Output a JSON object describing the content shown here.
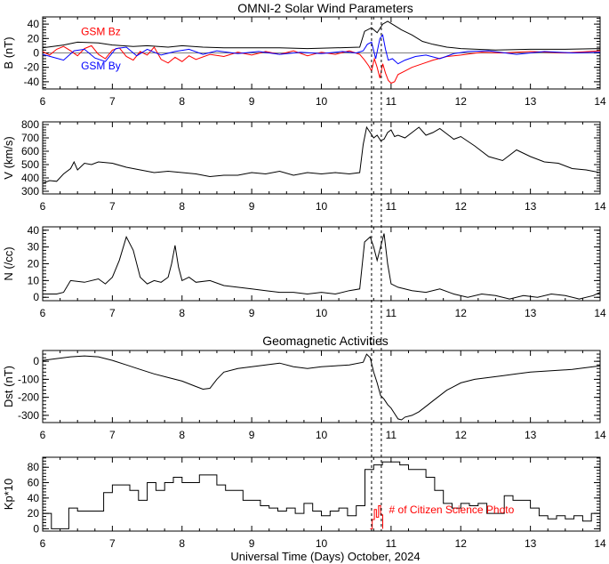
{
  "titles": {
    "solar_wind": "OMNI-2 Solar Wind Parameters",
    "geomagnetic": "Geomagnetic Activities"
  },
  "x_axis": {
    "label": "Universal Time (Days) October, 2024",
    "ticks": [
      6,
      7,
      8,
      9,
      10,
      11,
      12,
      13,
      14
    ],
    "range": [
      6,
      14
    ]
  },
  "event_markers": [
    10.72,
    10.86
  ],
  "colors": {
    "black": "#000000",
    "bz": "#ff0000",
    "by": "#0000ff",
    "photo": "#ff0000"
  },
  "chart_data": [
    {
      "id": "B",
      "type": "line",
      "ylabel": "B (nT)",
      "ylim": [
        -50,
        50
      ],
      "yticks": [
        -40,
        -20,
        0,
        20,
        40
      ],
      "labels": [
        {
          "text": "GSM Bz",
          "color": "#ff0000",
          "x": 6.55,
          "y": 25
        },
        {
          "text": "GSM By",
          "color": "#0000ff",
          "x": 6.55,
          "y": -23
        }
      ],
      "series": [
        {
          "key": "Bt",
          "color": "#000000",
          "x": [
            6.0,
            6.3,
            6.5,
            6.8,
            7.0,
            7.3,
            7.5,
            7.8,
            8.0,
            8.3,
            8.6,
            9.0,
            9.4,
            9.8,
            10.2,
            10.55,
            10.62,
            10.72,
            10.8,
            10.88,
            10.95,
            11.05,
            11.15,
            11.3,
            11.45,
            11.6,
            11.8,
            12.0,
            12.5,
            13.0,
            13.5,
            14.0
          ],
          "y": [
            7,
            11,
            15,
            14,
            11,
            9,
            10,
            8,
            10,
            8,
            7,
            7,
            7,
            6,
            7,
            8,
            30,
            35,
            28,
            40,
            44,
            38,
            32,
            25,
            16,
            12,
            8,
            6,
            4,
            5,
            5,
            6
          ]
        },
        {
          "key": "Bz",
          "color": "#ff0000",
          "x": [
            6.0,
            6.1,
            6.2,
            6.3,
            6.4,
            6.5,
            6.6,
            6.7,
            6.8,
            6.9,
            7.0,
            7.1,
            7.2,
            7.3,
            7.4,
            7.5,
            7.6,
            7.7,
            7.8,
            7.9,
            8.0,
            8.1,
            8.2,
            8.4,
            8.6,
            8.8,
            9.0,
            9.2,
            9.4,
            9.6,
            9.8,
            10.0,
            10.2,
            10.4,
            10.55,
            10.62,
            10.68,
            10.72,
            10.76,
            10.8,
            10.84,
            10.88,
            10.92,
            10.96,
            11.0,
            11.05,
            11.1,
            11.2,
            11.3,
            11.45,
            11.6,
            11.8,
            12.0,
            12.3,
            12.6,
            13.0,
            13.5,
            14.0
          ],
          "y": [
            2,
            -3,
            5,
            9,
            3,
            -4,
            6,
            10,
            -2,
            -8,
            4,
            7,
            -5,
            -10,
            2,
            -3,
            8,
            -9,
            -14,
            -6,
            -12,
            -4,
            -9,
            -2,
            -5,
            1,
            -3,
            2,
            -2,
            3,
            -4,
            1,
            -2,
            3,
            -2,
            -10,
            -18,
            -25,
            -8,
            -20,
            -35,
            -15,
            -28,
            -38,
            -42,
            -40,
            -30,
            -25,
            -20,
            -15,
            -10,
            -5,
            -3,
            1,
            0,
            2,
            0,
            3
          ]
        },
        {
          "key": "By",
          "color": "#0000ff",
          "x": [
            6.0,
            6.15,
            6.3,
            6.45,
            6.6,
            6.75,
            6.9,
            7.05,
            7.2,
            7.35,
            7.5,
            7.7,
            7.9,
            8.1,
            8.3,
            8.5,
            8.8,
            9.1,
            9.4,
            9.7,
            10.0,
            10.3,
            10.5,
            10.6,
            10.66,
            10.72,
            10.78,
            10.84,
            10.88,
            10.92,
            10.96,
            11.02,
            11.1,
            11.2,
            11.35,
            11.5,
            11.7,
            11.9,
            12.1,
            12.4,
            12.8,
            13.2,
            13.6,
            14.0
          ],
          "y": [
            -2,
            -6,
            -10,
            3,
            5,
            -7,
            -12,
            6,
            8,
            -4,
            5,
            -3,
            2,
            5,
            -2,
            3,
            -1,
            2,
            -2,
            1,
            -1,
            2,
            0,
            3,
            12,
            15,
            -8,
            20,
            25,
            5,
            -10,
            -8,
            -15,
            -10,
            -5,
            -3,
            -8,
            -1,
            2,
            3,
            -2,
            2,
            0,
            1
          ]
        }
      ]
    },
    {
      "id": "V",
      "type": "line",
      "ylabel": "V (km/s)",
      "ylim": [
        280,
        820
      ],
      "yticks": [
        300,
        400,
        500,
        600,
        700,
        800
      ],
      "series": [
        {
          "key": "V",
          "color": "#000000",
          "x": [
            6.0,
            6.1,
            6.2,
            6.3,
            6.4,
            6.45,
            6.5,
            6.6,
            6.7,
            6.8,
            7.0,
            7.2,
            7.4,
            7.6,
            7.8,
            8.0,
            8.2,
            8.4,
            8.6,
            8.8,
            9.0,
            9.2,
            9.4,
            9.6,
            9.8,
            10.0,
            10.2,
            10.4,
            10.55,
            10.6,
            10.65,
            10.7,
            10.75,
            10.8,
            10.85,
            10.9,
            10.95,
            11.0,
            11.05,
            11.1,
            11.2,
            11.3,
            11.4,
            11.5,
            11.6,
            11.7,
            11.8,
            11.9,
            12.0,
            12.2,
            12.4,
            12.6,
            12.8,
            13.0,
            13.2,
            13.4,
            13.6,
            13.8,
            14.0
          ],
          "y": [
            360,
            380,
            375,
            430,
            470,
            520,
            460,
            510,
            500,
            520,
            510,
            480,
            460,
            440,
            450,
            440,
            430,
            410,
            420,
            420,
            440,
            430,
            450,
            420,
            440,
            430,
            440,
            430,
            440,
            650,
            780,
            740,
            700,
            720,
            680,
            690,
            740,
            760,
            710,
            720,
            700,
            740,
            780,
            720,
            740,
            770,
            730,
            690,
            710,
            640,
            560,
            530,
            610,
            560,
            520,
            510,
            470,
            460,
            440
          ]
        }
      ]
    },
    {
      "id": "N",
      "type": "line",
      "ylabel": "N (/cc)",
      "ylim": [
        -2,
        42
      ],
      "yticks": [
        0,
        10,
        20,
        30,
        40
      ],
      "series": [
        {
          "key": "N",
          "color": "#000000",
          "x": [
            6.0,
            6.2,
            6.3,
            6.4,
            6.6,
            6.8,
            6.9,
            7.0,
            7.1,
            7.2,
            7.3,
            7.4,
            7.5,
            7.6,
            7.7,
            7.8,
            7.85,
            7.9,
            7.95,
            8.0,
            8.1,
            8.2,
            8.4,
            8.6,
            8.8,
            9.0,
            9.2,
            9.4,
            9.6,
            9.8,
            10.0,
            10.2,
            10.4,
            10.55,
            10.62,
            10.7,
            10.75,
            10.8,
            10.85,
            10.9,
            10.95,
            11.0,
            11.1,
            11.3,
            11.5,
            11.7,
            11.9,
            12.1,
            12.3,
            12.5,
            12.7,
            12.9,
            13.1,
            13.3,
            13.5,
            13.7,
            13.9,
            14.0
          ],
          "y": [
            2,
            2,
            3,
            10,
            9,
            11,
            8,
            12,
            22,
            36,
            28,
            12,
            8,
            10,
            9,
            12,
            20,
            31,
            18,
            10,
            12,
            9,
            10,
            7,
            6,
            5,
            4,
            3,
            3,
            2,
            3,
            2,
            4,
            5,
            33,
            36,
            30,
            22,
            30,
            38,
            20,
            8,
            6,
            4,
            3,
            5,
            2,
            0,
            2,
            1,
            -1,
            1,
            0,
            2,
            1,
            -1,
            1,
            3
          ]
        }
      ]
    },
    {
      "id": "Dst",
      "type": "line",
      "ylabel": "Dst (nT)",
      "ylim": [
        -340,
        60
      ],
      "yticks": [
        -300,
        -200,
        -100,
        0
      ],
      "series": [
        {
          "key": "Dst",
          "color": "#000000",
          "x": [
            6.0,
            6.2,
            6.4,
            6.6,
            6.8,
            7.0,
            7.2,
            7.4,
            7.6,
            7.8,
            8.0,
            8.2,
            8.3,
            8.4,
            8.5,
            8.6,
            8.8,
            9.0,
            9.2,
            9.4,
            9.6,
            9.8,
            10.0,
            10.2,
            10.4,
            10.6,
            10.65,
            10.7,
            10.75,
            10.8,
            10.85,
            10.9,
            10.95,
            11.0,
            11.05,
            11.1,
            11.15,
            11.2,
            11.3,
            11.4,
            11.5,
            11.6,
            11.8,
            12.0,
            12.2,
            12.4,
            12.6,
            12.8,
            13.0,
            13.2,
            13.4,
            13.6,
            13.8,
            14.0
          ],
          "y": [
            5,
            15,
            25,
            30,
            25,
            5,
            -20,
            -45,
            -70,
            -90,
            -110,
            -140,
            -155,
            -150,
            -100,
            -60,
            -40,
            -30,
            -20,
            -10,
            -30,
            -40,
            -30,
            -25,
            -20,
            -5,
            40,
            20,
            -60,
            -120,
            -190,
            -210,
            -240,
            -260,
            -290,
            -320,
            -325,
            -310,
            -300,
            -280,
            -250,
            -220,
            -160,
            -120,
            -100,
            -90,
            -80,
            -70,
            -60,
            -55,
            -50,
            -45,
            -35,
            -25
          ]
        }
      ]
    },
    {
      "id": "Kp",
      "type": "line",
      "ylabel": "Kp*10",
      "ylim": [
        -3,
        93
      ],
      "yticks": [
        0,
        20,
        40,
        60,
        80
      ],
      "annotation": {
        "text": "# of Citizen Science Photo",
        "color": "#ff0000",
        "x": 10.97,
        "y": 20
      },
      "series": [
        {
          "key": "Kp",
          "color": "#000000",
          "step": true,
          "x": [
            6.0,
            6.125,
            6.25,
            6.375,
            6.5,
            6.625,
            6.75,
            6.875,
            7.0,
            7.125,
            7.25,
            7.375,
            7.5,
            7.625,
            7.75,
            7.875,
            8.0,
            8.125,
            8.25,
            8.375,
            8.5,
            8.625,
            8.75,
            8.875,
            9.0,
            9.125,
            9.25,
            9.375,
            9.5,
            9.625,
            9.75,
            9.875,
            10.0,
            10.125,
            10.25,
            10.375,
            10.5,
            10.625,
            10.75,
            10.875,
            11.0,
            11.125,
            11.25,
            11.375,
            11.5,
            11.625,
            11.75,
            11.875,
            12.0,
            12.125,
            12.25,
            12.375,
            12.5,
            12.625,
            12.75,
            12.875,
            13.0,
            13.125,
            13.25,
            13.375,
            13.5,
            13.625,
            13.75,
            13.875,
            14.0
          ],
          "y": [
            20,
            0,
            0,
            27,
            23,
            23,
            23,
            47,
            57,
            57,
            50,
            37,
            60,
            50,
            60,
            67,
            60,
            60,
            70,
            70,
            57,
            50,
            50,
            37,
            37,
            30,
            27,
            23,
            27,
            20,
            33,
            23,
            17,
            23,
            27,
            17,
            30,
            77,
            83,
            87,
            87,
            83,
            77,
            77,
            67,
            50,
            33,
            27,
            33,
            30,
            33,
            20,
            20,
            43,
            37,
            37,
            27,
            17,
            13,
            17,
            13,
            17,
            10,
            20,
            13
          ]
        },
        {
          "key": "Photos",
          "color": "#ff0000",
          "step": true,
          "x": [
            10.7,
            10.73,
            10.76,
            10.79,
            10.82,
            10.85,
            10.88
          ],
          "y": [
            0,
            12,
            25,
            15,
            30,
            18,
            0
          ]
        }
      ]
    }
  ]
}
